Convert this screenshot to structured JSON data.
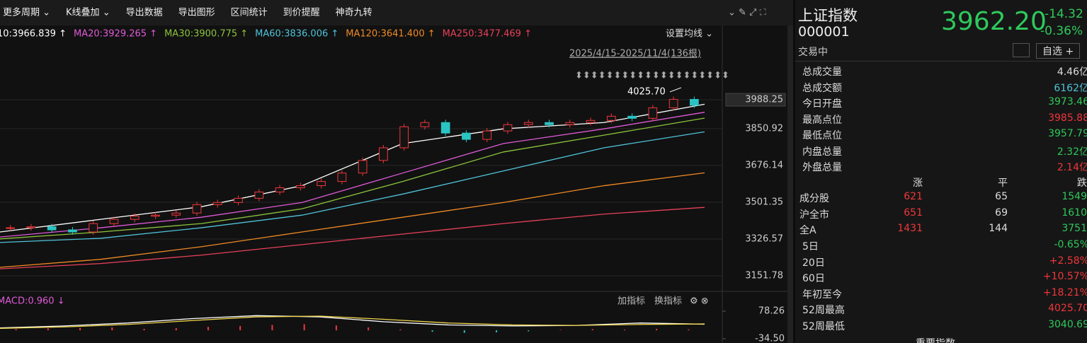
{
  "toolbar": [
    "更多周期 ⌄",
    "K线叠加 ⌄",
    "导出数据",
    "导出图形",
    "区间统计",
    "到价提醒",
    "神奇九转"
  ],
  "ma_settings": "设置均线 ⌄",
  "range_label": "2025/4/15-2025/11/4(136根)",
  "chart_data": [
    {
      "type": "candle-line",
      "ylim": [
        3084.5,
        4143
      ],
      "yticks": [
        3988.25,
        3850.92,
        3676.14,
        3501.35,
        3326.57,
        3151.78
      ],
      "grid": true,
      "close": [
        3380,
        3385,
        3370,
        3360,
        3400,
        3420,
        3435,
        3440,
        3450,
        3490,
        3500,
        3520,
        3550,
        3570,
        3580,
        3600,
        3640,
        3700,
        3760,
        3860,
        3880,
        3830,
        3800,
        3840,
        3870,
        3880,
        3870,
        3880,
        3890,
        3910,
        3900,
        3950,
        3990,
        3962
      ],
      "annotation": {
        "text": "4025.70",
        "value": 4025.7
      },
      "series": [
        {
          "name": "10:3966.839 ↑",
          "color": "#ffffff",
          "values": [
            3360,
            3420,
            3480,
            3580,
            3780,
            3850,
            3880,
            3967
          ]
        },
        {
          "name": "MA20:3929.265 ↑",
          "color": "#e05ad8",
          "values": [
            3336,
            3380,
            3430,
            3500,
            3640,
            3780,
            3850,
            3929
          ]
        },
        {
          "name": "MA30:3900.775 ↑",
          "color": "#8cc43c",
          "values": [
            3327,
            3360,
            3400,
            3470,
            3600,
            3740,
            3820,
            3901
          ]
        },
        {
          "name": "MA60:3836.006 ↑",
          "color": "#4fc3d9",
          "values": [
            3310,
            3330,
            3380,
            3440,
            3540,
            3650,
            3760,
            3836
          ]
        },
        {
          "name": "MA120:3641.400 ↑",
          "color": "#f08a24",
          "values": [
            3192,
            3230,
            3290,
            3360,
            3430,
            3500,
            3580,
            3641
          ]
        },
        {
          "name": "MA250:3477.469 ↑",
          "color": "#e8405a",
          "values": [
            3185,
            3210,
            3250,
            3300,
            3350,
            3400,
            3445,
            3477
          ]
        }
      ]
    },
    {
      "type": "macd",
      "title": "MACD:0.960 ↓",
      "ylim": [
        -34.5,
        78.26
      ],
      "yticks": [
        78.26,
        {
          "value": -34.5,
          "label": "-34.50"
        }
      ],
      "bars": [
        5,
        8,
        10,
        12,
        6,
        9,
        14,
        18,
        22,
        25,
        20,
        12,
        4,
        -6,
        -10,
        -8,
        -4,
        2,
        5,
        3,
        6,
        4
      ],
      "series": [
        {
          "color": "#ffffff",
          "values": [
            10,
            18,
            30,
            48,
            60,
            55,
            35,
            22,
            18,
            20,
            30,
            25
          ]
        },
        {
          "color": "#f0d64a",
          "values": [
            8,
            14,
            24,
            40,
            55,
            58,
            45,
            30,
            22,
            20,
            24,
            26
          ]
        }
      ]
    }
  ],
  "indicator_buttons": [
    "加指标",
    "换指标"
  ],
  "quote": {
    "name": "上证指数",
    "code": "000001",
    "status": "交易中",
    "price": "3962.20",
    "change": "-14.32",
    "change_pct": "-0.36%",
    "watch": "自选 +"
  },
  "stats": [
    [
      "总成交量",
      "4.46亿",
      "#ddd"
    ],
    [
      "总成交额",
      "6162亿",
      "#4fc3d9"
    ],
    [
      "今日开盘",
      "3973.46",
      "#2ec95c"
    ],
    [
      "最高点位",
      "3985.88",
      "#f0363a"
    ],
    [
      "最低点位",
      "3957.79",
      "#2ec95c"
    ],
    [
      "内盘总量",
      "2.32亿",
      "#2ec95c"
    ],
    [
      "外盘总量",
      "2.14亿",
      "#f0363a"
    ]
  ],
  "breadth": {
    "header": [
      "涨",
      "平",
      "跌"
    ],
    "rows": [
      [
        "成分股",
        "621",
        "65",
        "1549"
      ],
      [
        "沪全市",
        "651",
        "69",
        "1610"
      ],
      [
        "全A",
        "1431",
        "144",
        "3751"
      ]
    ]
  },
  "returns": [
    [
      "5日",
      "-0.65%",
      "#2ec95c"
    ],
    [
      "20日",
      "+2.58%",
      "#f0363a"
    ],
    [
      "60日",
      "+10.57%",
      "#f0363a"
    ],
    [
      "年初至今",
      "+18.21%",
      "#f0363a"
    ],
    [
      "52周最高",
      "4025.70",
      "#f0363a"
    ],
    [
      "52周最低",
      "3040.69",
      "#2ec95c"
    ]
  ],
  "footer": "重要指数"
}
